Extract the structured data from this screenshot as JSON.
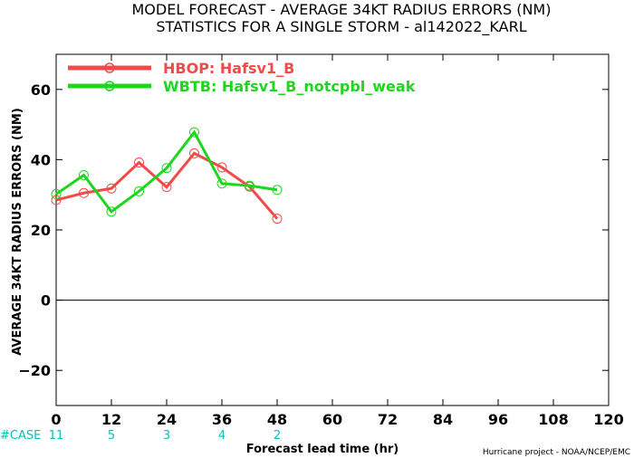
{
  "colors": {
    "series_1": "#f24a4a",
    "series_2": "#1fd61f",
    "case_counts": "#00bfbf",
    "axis": "#000000"
  },
  "chart_data": {
    "type": "line",
    "title": "MODEL FORECAST - AVERAGE 34KT RADIUS ERRORS (NM)",
    "subtitle": "STATISTICS FOR A SINGLE STORM - al142022_KARL",
    "xlabel": "Forecast lead time (hr)",
    "ylabel": "AVERAGE 34KT RADIUS ERRORS (NM)",
    "xlim": [
      0,
      120
    ],
    "ylim": [
      -30,
      70
    ],
    "x_ticks": [
      0,
      12,
      24,
      36,
      48,
      60,
      72,
      84,
      96,
      108,
      120
    ],
    "y_ticks": [
      -20,
      0,
      20,
      40,
      60
    ],
    "zero_line": true,
    "grid": false,
    "legend_position": "top-left",
    "series": [
      {
        "name": "HBOP: Hafsv1_B",
        "color": "#f24a4a",
        "x": [
          0,
          6,
          12,
          18,
          24,
          30,
          36,
          42,
          48
        ],
        "y": [
          28.5,
          30.5,
          31.8,
          39.2,
          32.2,
          41.8,
          37.8,
          32.3,
          23.2
        ]
      },
      {
        "name": "WBTB: Hafsv1_B_notcpbl_weak",
        "color": "#1fd61f",
        "x": [
          0,
          6,
          12,
          18,
          24,
          30,
          36,
          42,
          48
        ],
        "y": [
          30.2,
          35.6,
          25.2,
          31.0,
          37.6,
          47.8,
          33.2,
          32.6,
          31.4
        ]
      }
    ],
    "case_label": "#CASE",
    "case_counts": [
      {
        "x": 0,
        "label": "11"
      },
      {
        "x": 12,
        "label": "5"
      },
      {
        "x": 24,
        "label": "3"
      },
      {
        "x": 36,
        "label": "4"
      },
      {
        "x": 48,
        "label": "2"
      }
    ],
    "credit": "Hurricane project - NOAA/NCEP/EMC"
  }
}
